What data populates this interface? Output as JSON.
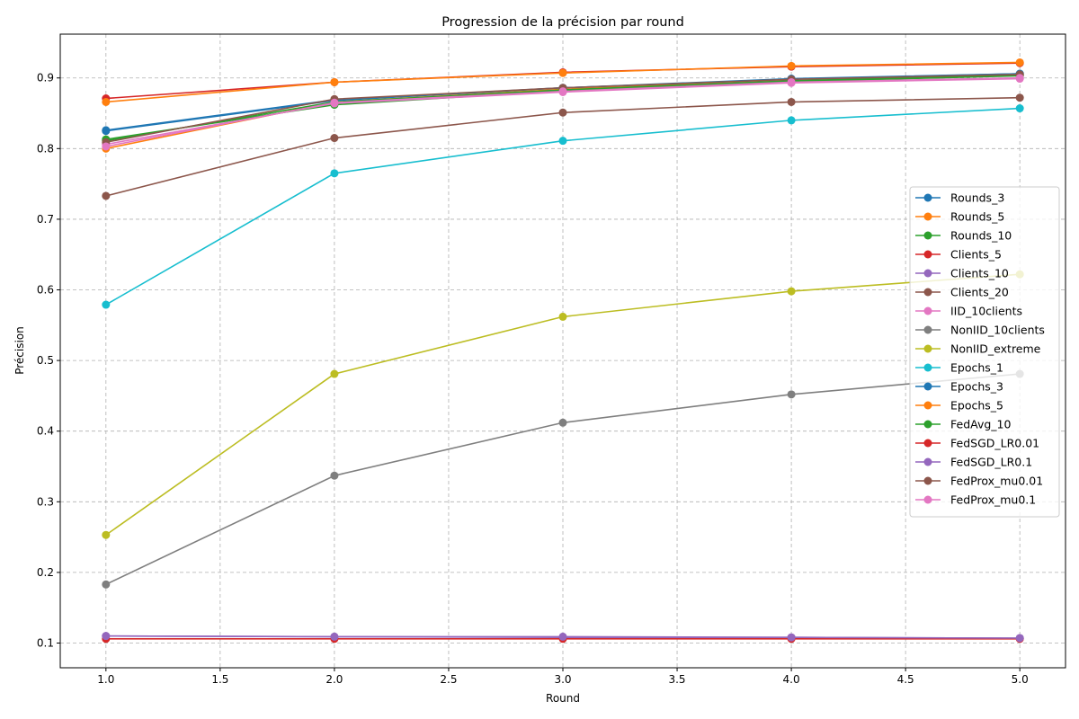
{
  "chart_data": {
    "type": "line",
    "title": "Progression de la précision par round",
    "xlabel": "Round",
    "ylabel": "Précision",
    "xlim": [
      0.8,
      5.2
    ],
    "ylim": [
      0.065,
      0.962
    ],
    "xticks": [
      "1.0",
      "1.5",
      "2.0",
      "2.5",
      "3.0",
      "3.5",
      "4.0",
      "4.5",
      "5.0"
    ],
    "yticks": [
      "0.1",
      "0.2",
      "0.3",
      "0.4",
      "0.5",
      "0.6",
      "0.7",
      "0.8",
      "0.9"
    ],
    "grid": true,
    "legend_position": "center-right",
    "x": [
      1,
      2,
      3,
      4,
      5
    ],
    "series": [
      {
        "name": "Rounds_3",
        "color": "#1f77b4",
        "values": [
          0.825,
          0.868,
          0.886,
          0.898,
          0.906
        ]
      },
      {
        "name": "Rounds_5",
        "color": "#ff7f0e",
        "values": [
          0.8,
          0.866,
          0.884,
          0.896,
          0.904
        ]
      },
      {
        "name": "Rounds_10",
        "color": "#2ca02c",
        "values": [
          0.813,
          0.862,
          0.882,
          0.895,
          0.903
        ]
      },
      {
        "name": "Clients_5",
        "color": "#d62728",
        "values": [
          0.871,
          0.894,
          0.908,
          0.916,
          0.921
        ]
      },
      {
        "name": "Clients_10",
        "color": "#9467bd",
        "values": [
          0.11,
          0.109,
          0.108,
          0.108,
          0.107
        ]
      },
      {
        "name": "Clients_20",
        "color": "#8c564b",
        "values": [
          0.733,
          0.815,
          0.851,
          0.866,
          0.872
        ]
      },
      {
        "name": "IID_10clients",
        "color": "#e377c2",
        "values": [
          0.806,
          0.864,
          0.88,
          0.893,
          0.899
        ]
      },
      {
        "name": "NonIID_10clients",
        "color": "#7f7f7f",
        "values": [
          0.183,
          0.337,
          0.412,
          0.452,
          0.481
        ]
      },
      {
        "name": "NonIID_extreme",
        "color": "#bcbd22",
        "values": [
          0.253,
          0.481,
          0.562,
          0.598,
          0.622
        ]
      },
      {
        "name": "Epochs_1",
        "color": "#17becf",
        "values": [
          0.579,
          0.765,
          0.811,
          0.84,
          0.857
        ]
      },
      {
        "name": "Epochs_3",
        "color": "#1f77b4",
        "values": [
          0.826,
          0.869,
          0.886,
          0.899,
          0.906
        ]
      },
      {
        "name": "Epochs_5",
        "color": "#ff7f0e",
        "values": [
          0.866,
          0.894,
          0.907,
          0.917,
          0.922
        ]
      },
      {
        "name": "FedAvg_10",
        "color": "#2ca02c",
        "values": [
          0.811,
          0.866,
          0.883,
          0.896,
          0.904
        ]
      },
      {
        "name": "FedSGD_LR0.01",
        "color": "#d62728",
        "values": [
          0.106,
          0.106,
          0.106,
          0.106,
          0.106
        ]
      },
      {
        "name": "FedSGD_LR0.1",
        "color": "#9467bd",
        "values": [
          0.11,
          0.109,
          0.109,
          0.108,
          0.107
        ]
      },
      {
        "name": "FedProx_mu0.01",
        "color": "#8c564b",
        "values": [
          0.809,
          0.87,
          0.886,
          0.898,
          0.905
        ]
      },
      {
        "name": "FedProx_mu0.1",
        "color": "#e377c2",
        "values": [
          0.803,
          0.865,
          0.881,
          0.894,
          0.9
        ]
      }
    ]
  }
}
